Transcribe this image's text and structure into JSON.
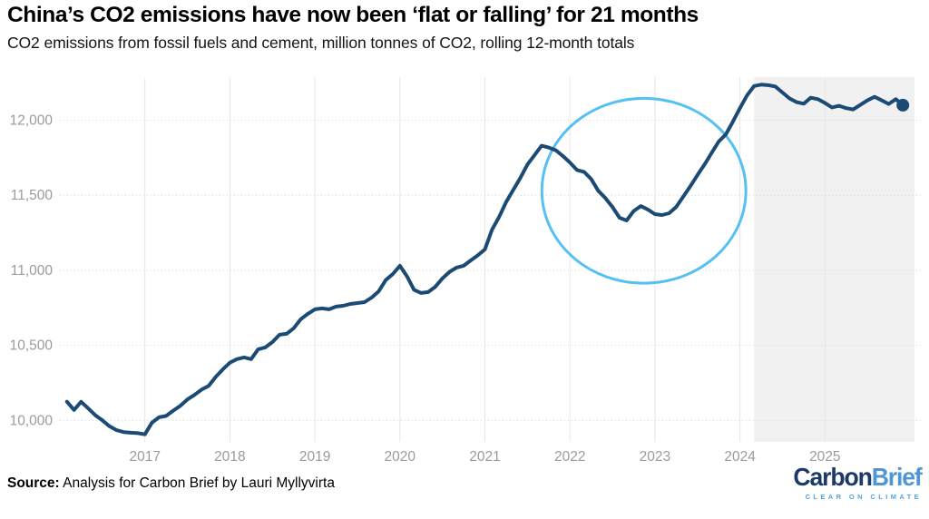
{
  "header": {
    "title": "China’s CO2 emissions have now been ‘flat or falling’ for 21 months",
    "subtitle": "CO2 emissions from fossil fuels and cement, million tonnes of CO2, rolling 12-month totals"
  },
  "footer": {
    "source_label": "Source:",
    "source_text": " Analysis for Carbon Brief by Lauri Myllyvirta",
    "logo": {
      "part1": "Carbon",
      "part2": "Brief",
      "tagline": "CLEAR ON CLIMATE",
      "part1_color": "#1d3a66",
      "part2_color": "#4e96d5"
    }
  },
  "chart_data": {
    "type": "line",
    "title": "China’s CO2 emissions have now been ‘flat or falling’ for 21 months",
    "subtitle": "CO2 emissions from fossil fuels and cement, million tonnes of CO2, rolling 12-month totals",
    "xlabel": "",
    "ylabel": "million tonnes of CO2, rolling 12-month totals",
    "xlim": [
      2016.0,
      2026.128
    ],
    "ylim": [
      9857,
      12287
    ],
    "grid": true,
    "x_ticks": [
      {
        "value": 2017,
        "label": "2017"
      },
      {
        "value": 2018,
        "label": "2018"
      },
      {
        "value": 2019,
        "label": "2019"
      },
      {
        "value": 2020,
        "label": "2020"
      },
      {
        "value": 2021,
        "label": "2021"
      },
      {
        "value": 2022,
        "label": "2022"
      },
      {
        "value": 2023,
        "label": "2023"
      },
      {
        "value": 2024,
        "label": "2024"
      },
      {
        "value": 2025,
        "label": "2025"
      }
    ],
    "y_ticks": [
      {
        "value": 10000,
        "label": "10,000"
      },
      {
        "value": 10500,
        "label": "10,500"
      },
      {
        "value": 11000,
        "label": "11,000"
      },
      {
        "value": 11500,
        "label": "11,500"
      },
      {
        "value": 12000,
        "label": "12,000"
      }
    ],
    "series": [
      {
        "name": "China CO2 emissions from fossil fuels and cement, rolling 12-month total (million tonnes)",
        "color": "#1b4a74",
        "line_width": 4,
        "start_year": 2016,
        "start_month": 2,
        "frequency": "monthly",
        "values": [
          10125,
          10070,
          10124,
          10080,
          10035,
          10000,
          9961,
          9935,
          9922,
          9918,
          9915,
          9907,
          9985,
          10021,
          10030,
          10065,
          10097,
          10140,
          10170,
          10205,
          10230,
          10290,
          10340,
          10385,
          10408,
          10420,
          10408,
          10474,
          10486,
          10522,
          10571,
          10577,
          10614,
          10674,
          10710,
          10740,
          10746,
          10740,
          10758,
          10764,
          10776,
          10782,
          10788,
          10818,
          10860,
          10935,
          10975,
          11030,
          10960,
          10870,
          10849,
          10855,
          10890,
          10946,
          10990,
          11018,
          11030,
          11066,
          11100,
          11140,
          11270,
          11355,
          11455,
          11535,
          11615,
          11705,
          11768,
          11830,
          11818,
          11800,
          11762,
          11718,
          11668,
          11656,
          11608,
          11530,
          11482,
          11422,
          11350,
          11332,
          11395,
          11428,
          11405,
          11374,
          11368,
          11380,
          11422,
          11490,
          11560,
          11635,
          11705,
          11782,
          11858,
          11905,
          11990,
          12080,
          12165,
          12228,
          12237,
          12233,
          12225,
          12184,
          12145,
          12120,
          12110,
          12150,
          12140,
          12115,
          12085,
          12096,
          12080,
          12072,
          12102,
          12132,
          12156,
          12132,
          12108,
          12140,
          12100
        ]
      }
    ],
    "highlight_region": {
      "start_year": 2024.167,
      "end_year": 2026.053,
      "color": "#f1f1f1"
    },
    "annotation_ellipse": {
      "center_year": 2022.87,
      "center_value": 11530,
      "rx_years": 1.2,
      "ry_value": 616,
      "color": "#55c1f3",
      "stroke_width": 3
    },
    "end_marker": {
      "value": 12100,
      "radius": 7,
      "color": "#1b4a74"
    },
    "styles": {
      "tick_label_color": "#9b9b9b",
      "tick_font_size": 15.5,
      "v_grid_color": "#e6e6e6",
      "h_grid_color": "#d6d6d6"
    }
  }
}
